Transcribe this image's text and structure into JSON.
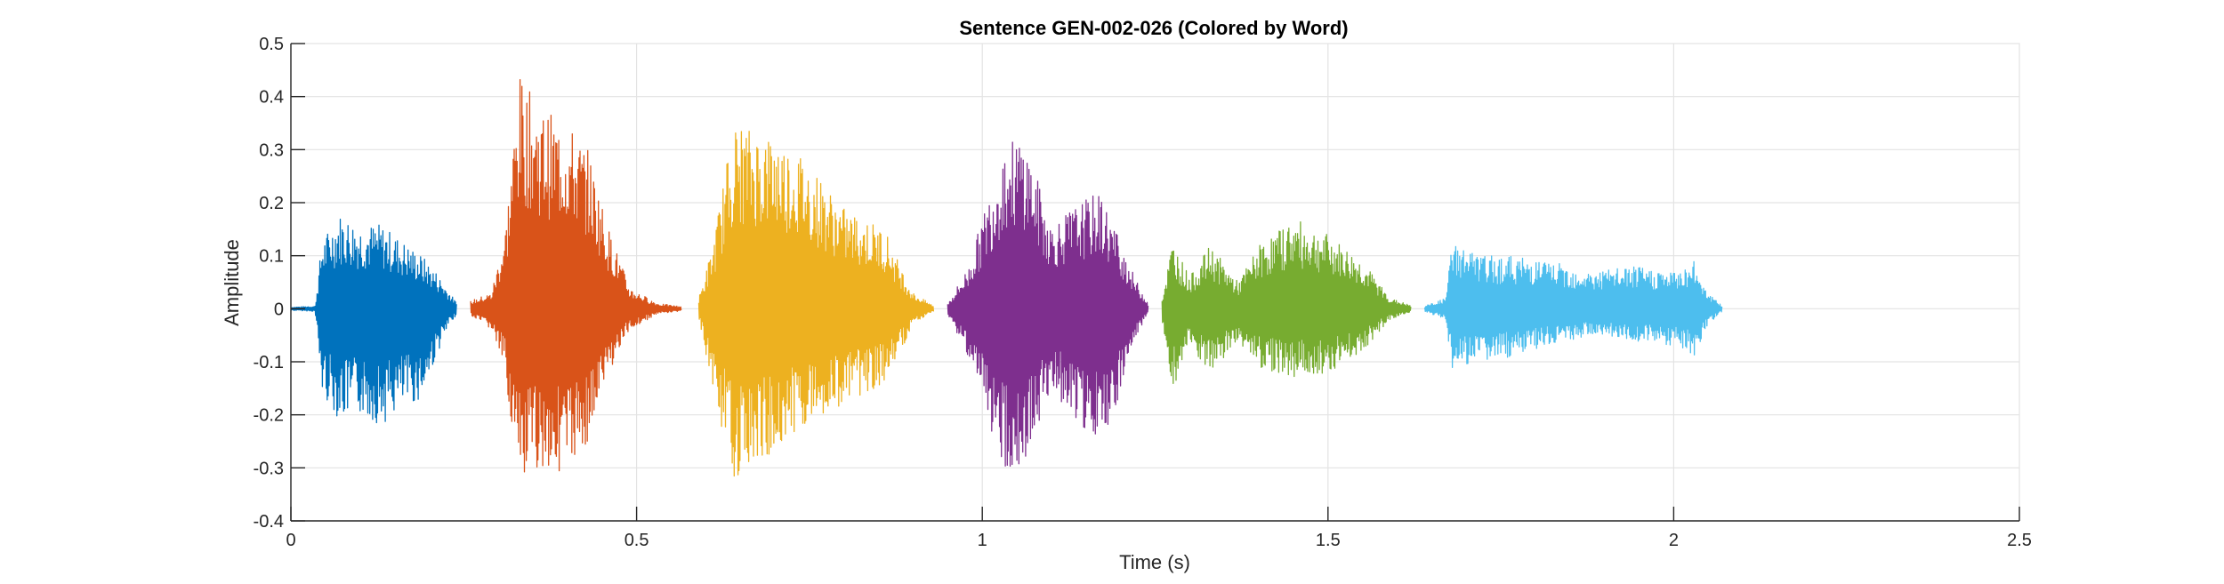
{
  "chart_data": {
    "type": "line",
    "title": "Sentence GEN-002-026 (Colored by Word)",
    "xlabel": "Time (s)",
    "ylabel": "Amplitude",
    "xlim": [
      0,
      2.5
    ],
    "ylim": [
      -0.4,
      0.5
    ],
    "grid": true,
    "x_ticks": [
      {
        "value": 0,
        "label": "0"
      },
      {
        "value": 0.5,
        "label": "0.5"
      },
      {
        "value": 1,
        "label": "1"
      },
      {
        "value": 1.5,
        "label": "1.5"
      },
      {
        "value": 2,
        "label": "2"
      },
      {
        "value": 2.5,
        "label": "2.5"
      }
    ],
    "y_ticks": [
      {
        "value": -0.4,
        "label": "-0.4"
      },
      {
        "value": -0.3,
        "label": "-0.3"
      },
      {
        "value": -0.2,
        "label": "-0.2"
      },
      {
        "value": -0.1,
        "label": "-0.1"
      },
      {
        "value": 0,
        "label": "0"
      },
      {
        "value": 0.1,
        "label": "0.1"
      },
      {
        "value": 0.2,
        "label": "0.2"
      },
      {
        "value": 0.3,
        "label": "0.3"
      },
      {
        "value": 0.4,
        "label": "0.4"
      },
      {
        "value": 0.5,
        "label": "0.5"
      }
    ],
    "series": [
      {
        "color": "#0072BD",
        "x_start": 0.0,
        "x_end": 0.24,
        "envelope": [
          [
            0.0,
            0.003,
            -0.003
          ],
          [
            0.035,
            0.005,
            -0.005
          ],
          [
            0.045,
            0.13,
            -0.16
          ],
          [
            0.07,
            0.18,
            -0.21
          ],
          [
            0.1,
            0.16,
            -0.2
          ],
          [
            0.13,
            0.16,
            -0.22
          ],
          [
            0.16,
            0.13,
            -0.19
          ],
          [
            0.19,
            0.1,
            -0.17
          ],
          [
            0.21,
            0.07,
            -0.09
          ],
          [
            0.23,
            0.03,
            -0.03
          ],
          [
            0.24,
            0.01,
            -0.01
          ]
        ]
      },
      {
        "color": "#D95319",
        "x_start": 0.26,
        "x_end": 0.565,
        "envelope": [
          [
            0.26,
            0.015,
            -0.015
          ],
          [
            0.29,
            0.03,
            -0.04
          ],
          [
            0.31,
            0.15,
            -0.12
          ],
          [
            0.33,
            0.44,
            -0.35
          ],
          [
            0.36,
            0.38,
            -0.3
          ],
          [
            0.4,
            0.35,
            -0.31
          ],
          [
            0.43,
            0.3,
            -0.25
          ],
          [
            0.46,
            0.15,
            -0.12
          ],
          [
            0.49,
            0.04,
            -0.04
          ],
          [
            0.53,
            0.01,
            -0.01
          ],
          [
            0.565,
            0.004,
            -0.004
          ]
        ]
      },
      {
        "color": "#EDB120",
        "x_start": 0.59,
        "x_end": 0.93,
        "envelope": [
          [
            0.59,
            0.02,
            -0.02
          ],
          [
            0.61,
            0.12,
            -0.15
          ],
          [
            0.64,
            0.35,
            -0.32
          ],
          [
            0.7,
            0.33,
            -0.27
          ],
          [
            0.74,
            0.29,
            -0.22
          ],
          [
            0.8,
            0.19,
            -0.18
          ],
          [
            0.86,
            0.15,
            -0.14
          ],
          [
            0.875,
            0.1,
            -0.1
          ],
          [
            0.9,
            0.03,
            -0.03
          ],
          [
            0.93,
            0.005,
            -0.005
          ]
        ]
      },
      {
        "color": "#7E2F8E",
        "x_start": 0.95,
        "x_end": 1.24,
        "envelope": [
          [
            0.95,
            0.01,
            -0.01
          ],
          [
            0.98,
            0.08,
            -0.09
          ],
          [
            1.03,
            0.31,
            -0.3
          ],
          [
            1.06,
            0.33,
            -0.31
          ],
          [
            1.1,
            0.16,
            -0.15
          ],
          [
            1.14,
            0.2,
            -0.22
          ],
          [
            1.17,
            0.22,
            -0.27
          ],
          [
            1.2,
            0.13,
            -0.16
          ],
          [
            1.22,
            0.06,
            -0.06
          ],
          [
            1.24,
            0.01,
            -0.01
          ]
        ]
      },
      {
        "color": "#77AC30",
        "x_start": 1.26,
        "x_end": 1.62,
        "envelope": [
          [
            1.26,
            0.02,
            -0.02
          ],
          [
            1.275,
            0.13,
            -0.16
          ],
          [
            1.3,
            0.06,
            -0.07
          ],
          [
            1.33,
            0.12,
            -0.13
          ],
          [
            1.37,
            0.05,
            -0.06
          ],
          [
            1.4,
            0.12,
            -0.11
          ],
          [
            1.45,
            0.17,
            -0.13
          ],
          [
            1.5,
            0.14,
            -0.12
          ],
          [
            1.55,
            0.09,
            -0.08
          ],
          [
            1.59,
            0.02,
            -0.02
          ],
          [
            1.62,
            0.006,
            -0.006
          ]
        ]
      },
      {
        "color": "#4DBEEE",
        "x_start": 1.64,
        "x_end": 2.07,
        "envelope": [
          [
            1.64,
            0.005,
            -0.005
          ],
          [
            1.67,
            0.02,
            -0.02
          ],
          [
            1.68,
            0.13,
            -0.12
          ],
          [
            1.72,
            0.1,
            -0.1
          ],
          [
            1.77,
            0.1,
            -0.09
          ],
          [
            1.82,
            0.09,
            -0.07
          ],
          [
            1.88,
            0.07,
            -0.05
          ],
          [
            1.94,
            0.08,
            -0.06
          ],
          [
            2.0,
            0.07,
            -0.07
          ],
          [
            2.03,
            0.09,
            -0.09
          ],
          [
            2.05,
            0.03,
            -0.03
          ],
          [
            2.07,
            0.005,
            -0.005
          ]
        ]
      }
    ]
  }
}
